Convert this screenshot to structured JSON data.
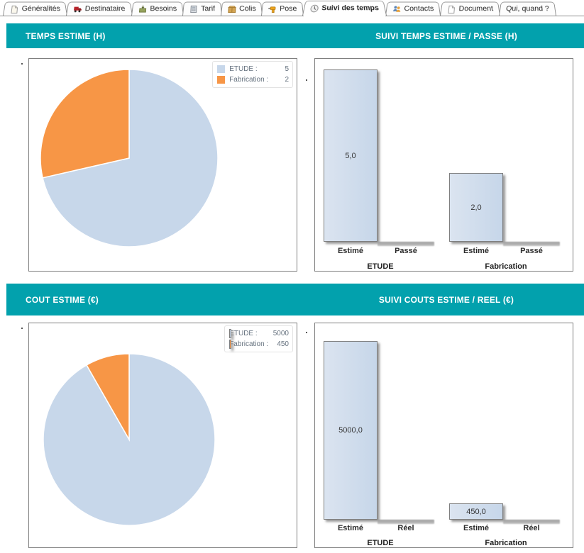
{
  "window": {
    "tabs": [
      {
        "label": "Généralités",
        "icon": "page-icon",
        "active": false
      },
      {
        "label": "Destinataire",
        "icon": "truck-icon",
        "active": false
      },
      {
        "label": "Besoins",
        "icon": "inbox-icon",
        "active": false
      },
      {
        "label": "Tarif",
        "icon": "calculator-icon",
        "active": false
      },
      {
        "label": "Colis",
        "icon": "package-icon",
        "active": false
      },
      {
        "label": "Pose",
        "icon": "drill-icon",
        "active": false
      },
      {
        "label": "Suivi des temps",
        "icon": "clock-icon",
        "active": true
      },
      {
        "label": "Contacts",
        "icon": "contacts-icon",
        "active": false
      },
      {
        "label": "Document",
        "icon": "document-icon",
        "active": false
      },
      {
        "label": "Qui, quand ?",
        "icon": null,
        "active": false
      }
    ]
  },
  "colors": {
    "teal": "#02a1ad",
    "pie_blue": "#c7d7ea",
    "pie_orange": "#f79646",
    "bar_fill": "#ccdaeb",
    "panel_border": "#7f7f7f"
  },
  "sections": [
    {
      "title": "TEMPS ESTIME (H)",
      "right_title": "SUIVI TEMPS ESTIME / PASSE (H)"
    },
    {
      "title": "COUT ESTIME (€)",
      "right_title": "SUIVI COUTS ESTIME / REEL (€)"
    }
  ],
  "chart_data": [
    {
      "type": "pie",
      "title": "TEMPS ESTIME (H)",
      "series": [
        {
          "label": "ETUDE",
          "value": 5,
          "color": "#c7d7ea"
        },
        {
          "label": "Fabrication",
          "value": 2,
          "color": "#f79646"
        }
      ],
      "start_angle": "top",
      "direction": "clockwise",
      "legend_position": "top-right",
      "legend_swatch": "square"
    },
    {
      "type": "bar",
      "title": "SUIVI TEMPS ESTIME / PASSE (H)",
      "categories": [
        "ETUDE",
        "Fabrication"
      ],
      "series": [
        {
          "name": "Estimé",
          "values": [
            5.0,
            2.0
          ],
          "display": [
            "5,0",
            "2,0"
          ]
        },
        {
          "name": "Passé",
          "values": [
            0,
            0
          ],
          "display": [
            "",
            ""
          ]
        }
      ],
      "ylim": [
        0,
        5
      ],
      "grid": false,
      "legend_position": "none"
    },
    {
      "type": "pie",
      "title": "COUT ESTIME (€)",
      "series": [
        {
          "label": "ETUDE",
          "value": 5000,
          "color": "#c7d7ea"
        },
        {
          "label": "Fabrication",
          "value": 450,
          "color": "#f79646"
        }
      ],
      "start_angle": "top",
      "direction": "clockwise",
      "legend_position": "top-right",
      "legend_swatch": "bar"
    },
    {
      "type": "bar",
      "title": "SUIVI COUTS ESTIME / REEL (€)",
      "categories": [
        "ETUDE",
        "Fabrication"
      ],
      "series": [
        {
          "name": "Estimé",
          "values": [
            5000,
            450
          ],
          "display": [
            "5000,0",
            "450,0"
          ]
        },
        {
          "name": "Réel",
          "values": [
            0,
            0
          ],
          "display": [
            "",
            ""
          ]
        }
      ],
      "ylim": [
        0,
        5000
      ],
      "grid": false,
      "legend_position": "none"
    }
  ]
}
